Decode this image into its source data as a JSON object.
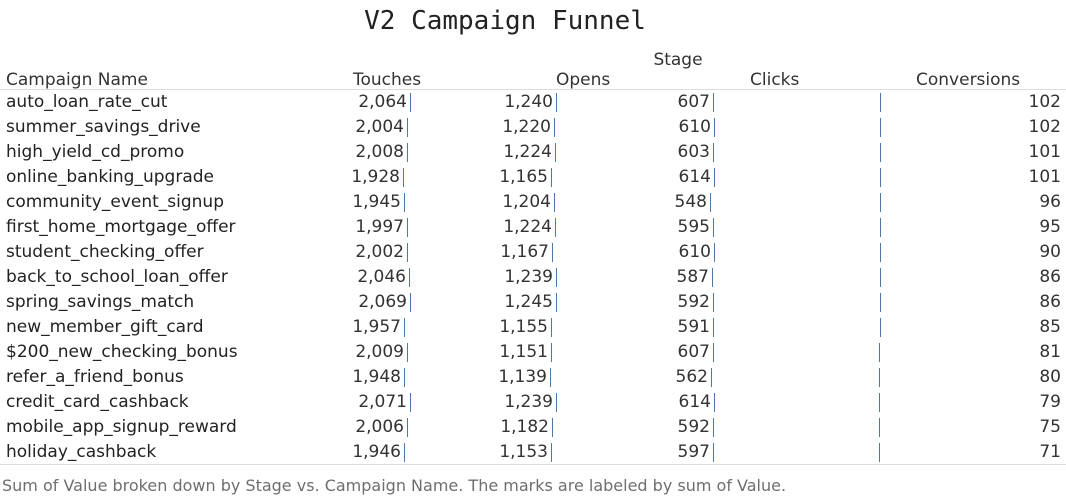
{
  "title": "V2 Campaign Funnel",
  "caption": "Sum of Value broken down by Stage vs. Campaign Name.  The marks are labeled by sum of Value.",
  "colors": {
    "bar": "#4e79a7",
    "text": "#333333",
    "caption": "#6e6e6e",
    "rule": "#dcdcdc"
  },
  "chart_data": {
    "type": "table",
    "title": "V2 Campaign Funnel",
    "row_header": "Campaign Name",
    "column_group_label": "Stage",
    "columns": [
      "Touches",
      "Opens",
      "Clicks",
      "Conversions"
    ],
    "rows": [
      {
        "name": "auto_loan_rate_cut",
        "values": [
          2064,
          1240,
          607,
          102
        ],
        "labels": [
          "2,064",
          "1,240",
          "607",
          "102"
        ]
      },
      {
        "name": "summer_savings_drive",
        "values": [
          2004,
          1220,
          610,
          102
        ],
        "labels": [
          "2,004",
          "1,220",
          "610",
          "102"
        ]
      },
      {
        "name": "high_yield_cd_promo",
        "values": [
          2008,
          1224,
          603,
          101
        ],
        "labels": [
          "2,008",
          "1,224",
          "603",
          "101"
        ]
      },
      {
        "name": "online_banking_upgrade",
        "values": [
          1928,
          1165,
          614,
          101
        ],
        "labels": [
          "1,928",
          "1,165",
          "614",
          "101"
        ]
      },
      {
        "name": "community_event_signup",
        "values": [
          1945,
          1204,
          548,
          96
        ],
        "labels": [
          "1,945",
          "1,204",
          "548",
          "96"
        ]
      },
      {
        "name": "first_home_mortgage_offer",
        "values": [
          1997,
          1224,
          595,
          95
        ],
        "labels": [
          "1,997",
          "1,224",
          "595",
          "95"
        ]
      },
      {
        "name": "student_checking_offer",
        "values": [
          2002,
          1167,
          610,
          90
        ],
        "labels": [
          "2,002",
          "1,167",
          "610",
          "90"
        ]
      },
      {
        "name": "back_to_school_loan_offer",
        "values": [
          2046,
          1239,
          587,
          86
        ],
        "labels": [
          "2,046",
          "1,239",
          "587",
          "86"
        ]
      },
      {
        "name": "spring_savings_match",
        "values": [
          2069,
          1245,
          592,
          86
        ],
        "labels": [
          "2,069",
          "1,245",
          "592",
          "86"
        ]
      },
      {
        "name": "new_member_gift_card",
        "values": [
          1957,
          1155,
          591,
          85
        ],
        "labels": [
          "1,957",
          "1,155",
          "591",
          "85"
        ]
      },
      {
        "name": "$200_new_checking_bonus",
        "values": [
          2009,
          1151,
          607,
          81
        ],
        "labels": [
          "2,009",
          "1,151",
          "607",
          "81"
        ]
      },
      {
        "name": "refer_a_friend_bonus",
        "values": [
          1948,
          1139,
          562,
          80
        ],
        "labels": [
          "1,948",
          "1,139",
          "562",
          "80"
        ]
      },
      {
        "name": "credit_card_cashback",
        "values": [
          2071,
          1239,
          614,
          79
        ],
        "labels": [
          "2,071",
          "1,239",
          "614",
          "79"
        ]
      },
      {
        "name": "mobile_app_signup_reward",
        "values": [
          2006,
          1182,
          592,
          75
        ],
        "labels": [
          "2,006",
          "1,182",
          "592",
          "75"
        ]
      },
      {
        "name": "holiday_cashback",
        "values": [
          1946,
          1153,
          597,
          71
        ],
        "labels": [
          "1,946",
          "1,153",
          "597",
          "71"
        ]
      }
    ]
  }
}
